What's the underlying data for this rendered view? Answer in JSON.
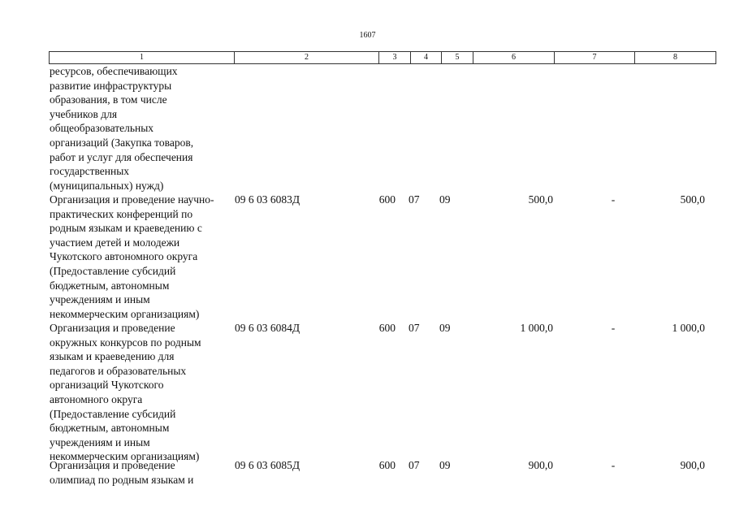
{
  "page_number": "1607",
  "header": [
    "1",
    "2",
    "3",
    "4",
    "5",
    "6",
    "7",
    "8"
  ],
  "rows": [
    {
      "lines": [
        "ресурсов, обеспечивающих",
        "развитие инфраструктуры",
        "образования, в том числе",
        "учебников для",
        "общеобразовательных",
        "организаций (Закупка товаров,",
        "работ и услуг для обеспечения",
        "государственных",
        "(муниципальных) нужд)"
      ]
    },
    {
      "lines": [
        "Организация и проведение научно-",
        "практических конференций по",
        "родным языкам и краеведению с",
        "участием детей и молодежи",
        "Чукотского автономного округа",
        "(Предоставление субсидий",
        "бюджетным, автономным",
        "учреждениям и иным",
        "некоммерческим организациям)"
      ],
      "code": "09 6 03 6083Д",
      "c3": "600",
      "c4": "07",
      "c5": "09",
      "c6": "500,0",
      "c7": "-",
      "c8": "500,0"
    },
    {
      "lines": [
        "Организация и проведение",
        "окружных конкурсов по родным",
        "языкам и краеведению для",
        "педагогов и образовательных",
        "организаций Чукотского",
        "автономного округа",
        "(Предоставление субсидий",
        "бюджетным, автономным",
        "учреждениям и иным",
        "некоммерческим организациям)"
      ],
      "code": "09 6 03 6084Д",
      "c3": "600",
      "c4": "07",
      "c5": "09",
      "c6": "1 000,0",
      "c7": "-",
      "c8": "1 000,0"
    },
    {
      "lines": [
        "Организация и проведение",
        "олимпиад по родным языкам и"
      ],
      "code": "09 6 03 6085Д",
      "c3": "600",
      "c4": "07",
      "c5": "09",
      "c6": "900,0",
      "c7": "-",
      "c8": "900,0"
    }
  ]
}
